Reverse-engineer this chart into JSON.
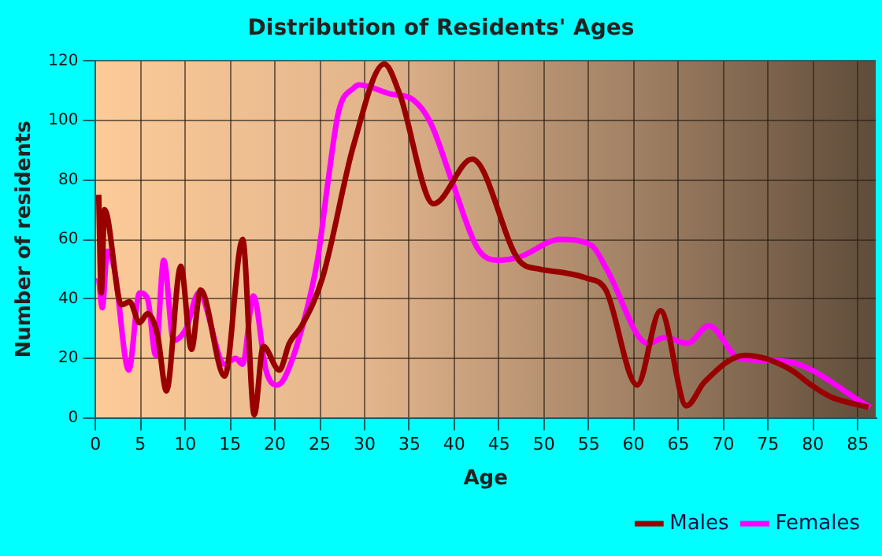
{
  "chart_data": {
    "type": "line",
    "title": "Distribution of Residents' Ages",
    "xlabel": "Age",
    "ylabel": "Number of residents",
    "xlim": [
      0,
      87
    ],
    "xticks": [
      0,
      5,
      10,
      15,
      20,
      25,
      30,
      35,
      40,
      45,
      50,
      55,
      60,
      65,
      70,
      75,
      80,
      85
    ],
    "ylim": [
      0,
      120
    ],
    "yticks": [
      0,
      20,
      40,
      60,
      80,
      100,
      120
    ],
    "grid": true,
    "legend": "bottom right",
    "marker": "none",
    "line_style": "solid",
    "series": [
      {
        "name": "Males",
        "color": "#990000",
        "x": [
          0.35,
          0.63,
          1.0,
          2.9,
          3.8,
          4.9,
          5.8,
          6.9,
          7.9,
          9.5,
          10.7,
          11.7,
          14.4,
          16.4,
          17.7,
          18.7,
          20.5,
          21.6,
          23,
          25.3,
          28.8,
          32.2,
          33.9,
          37.7,
          42,
          47.2,
          49.5,
          51.8,
          54.7,
          56.9,
          60.4,
          63,
          65.9,
          67.9,
          72.4,
          74.6,
          77.6,
          79.8,
          82,
          86.2
        ],
        "values": [
          75,
          42,
          70,
          38,
          39,
          32,
          35,
          28,
          9,
          51,
          23,
          43,
          14,
          60,
          1,
          24,
          16,
          25,
          31,
          47,
          92,
          119,
          109,
          72,
          87,
          53,
          50,
          49,
          47,
          43,
          11,
          36,
          4,
          12,
          21,
          20,
          16,
          11,
          7,
          3.5
        ]
      },
      {
        "name": "Females",
        "color": "#ff00ff",
        "x": [
          0.35,
          0.75,
          1.3,
          2.1,
          3.7,
          4.9,
          5.8,
          6.7,
          7.6,
          8.7,
          10.1,
          11.5,
          14.4,
          15.6,
          16.4,
          17.6,
          19,
          20.2,
          21,
          23,
          24.8,
          25.9,
          27.1,
          28.8,
          29.4,
          32.8,
          35.4,
          37.4,
          39.7,
          42.6,
          44.9,
          47.2,
          51.8,
          55.3,
          57,
          61.6,
          63.5,
          66,
          68.4,
          71.8,
          76.9,
          86.4
        ],
        "values": [
          47,
          37,
          56,
          50,
          16,
          42,
          40,
          21,
          53,
          26,
          30,
          42,
          18,
          20,
          18,
          41,
          16,
          11,
          13,
          30,
          54,
          79,
          103,
          111,
          112,
          109,
          107,
          99,
          80,
          57,
          53,
          54,
          60,
          58,
          50,
          25,
          27,
          25,
          31,
          20,
          19,
          3.5
        ]
      }
    ]
  }
}
